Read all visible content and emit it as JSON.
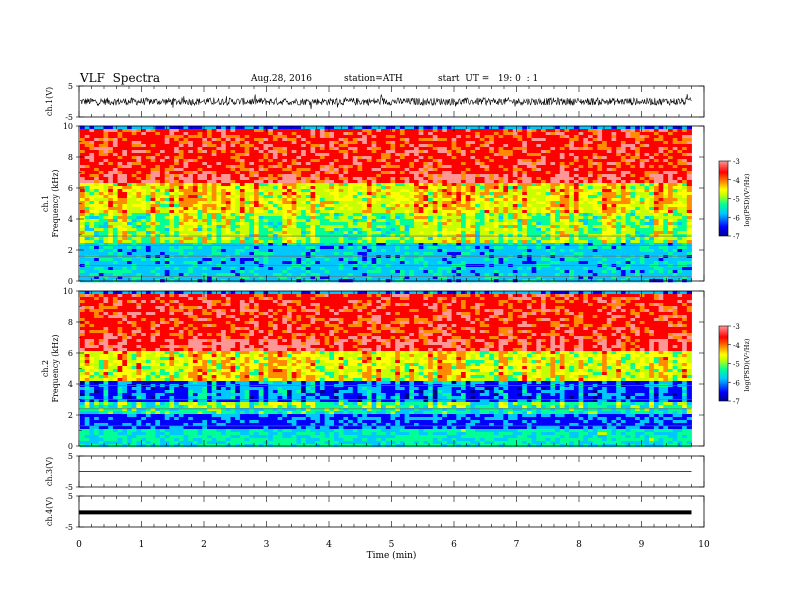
{
  "header": {
    "title": "VLF  Spectra",
    "date": "Aug.28, 2016",
    "station": "station=ATH",
    "start": "start  UT =   19: 0  : 1"
  },
  "chart_data": [
    {
      "type": "line",
      "panel": "ch1-waveform",
      "ylabel": "ch.1(V)",
      "ylim": [
        -5,
        5
      ],
      "yticks": [
        "5",
        "-5"
      ],
      "series": [
        {
          "values_description_free": true,
          "noise_amplitude_v": 1.2,
          "spike_amplitude_v": 2.5,
          "color": "#000000"
        }
      ]
    },
    {
      "type": "heatmap",
      "panel": "ch1-spectrogram",
      "ylabel": "ch.1\nFrequency  (kHz)",
      "ylim": [
        0,
        10
      ],
      "yticks": [
        "0",
        "2",
        "4",
        "6",
        "8",
        "10"
      ],
      "xlim": [
        0,
        10
      ],
      "colorbar": {
        "label": "log(PSD)(V²/Hz)",
        "range": [
          -7,
          -3
        ],
        "ticks": [
          "-3",
          "-4",
          "-5",
          "-6",
          "-7"
        ]
      },
      "bands_khz": [
        {
          "from": 0,
          "to": 2.5,
          "level": -5.8
        },
        {
          "from": 2.5,
          "to": 4.5,
          "level": -5.2
        },
        {
          "from": 4.5,
          "to": 6.5,
          "level": -4.7
        },
        {
          "from": 6.5,
          "to": 10,
          "level": -3.6
        }
      ],
      "lines_khz": [
        0.3,
        1.0,
        1.6,
        2.3,
        2.9
      ]
    },
    {
      "type": "heatmap",
      "panel": "ch2-spectrogram",
      "ylabel": "ch.2\nFrequency  (kHz)",
      "ylim": [
        0,
        10
      ],
      "yticks": [
        "0",
        "2",
        "4",
        "6",
        "8",
        "10"
      ],
      "xlim": [
        0,
        10
      ],
      "colorbar": {
        "label": "log(PSD)(V²/Hz)",
        "range": [
          -7,
          -3
        ],
        "ticks": [
          "-3",
          "-4",
          "-5",
          "-6",
          "-7"
        ]
      },
      "bands_khz": [
        {
          "from": 0,
          "to": 1.2,
          "level": -5.5
        },
        {
          "from": 1.2,
          "to": 2.2,
          "level": -6.3
        },
        {
          "from": 2.2,
          "to": 3.0,
          "level": -5.4
        },
        {
          "from": 3.0,
          "to": 4.2,
          "level": -6.4
        },
        {
          "from": 4.2,
          "to": 6.2,
          "level": -4.8
        },
        {
          "from": 6.2,
          "to": 10,
          "level": -3.6
        }
      ],
      "lines_khz": [
        1.3,
        2.4,
        3.0,
        3.9
      ]
    },
    {
      "type": "line",
      "panel": "ch3-waveform",
      "ylabel": "ch.3(V)",
      "ylim": [
        -5,
        5
      ],
      "yticks": [
        "5",
        "-5"
      ],
      "series": [
        {
          "constant_v": 0.0,
          "color": "#000000"
        }
      ]
    },
    {
      "type": "line",
      "panel": "ch4-waveform",
      "ylabel": "ch.4(V)",
      "ylim": [
        -5,
        5
      ],
      "yticks": [
        "5",
        "-5"
      ],
      "series": [
        {
          "constant_v": -0.3,
          "color": "#000000",
          "thick": true
        }
      ]
    }
  ],
  "xaxis": {
    "label": "Time  (min)",
    "xlim": [
      0,
      10
    ],
    "ticks": [
      "0",
      "1",
      "2",
      "3",
      "4",
      "5",
      "6",
      "7",
      "8",
      "9",
      "10"
    ],
    "data_end_min": 9.8
  },
  "colors": {
    "colormap": [
      "#00008c",
      "#0000ff",
      "#00c8ff",
      "#00ff96",
      "#c8ff00",
      "#ffff00",
      "#ff8c00",
      "#ff0000",
      "#ff9696"
    ]
  }
}
